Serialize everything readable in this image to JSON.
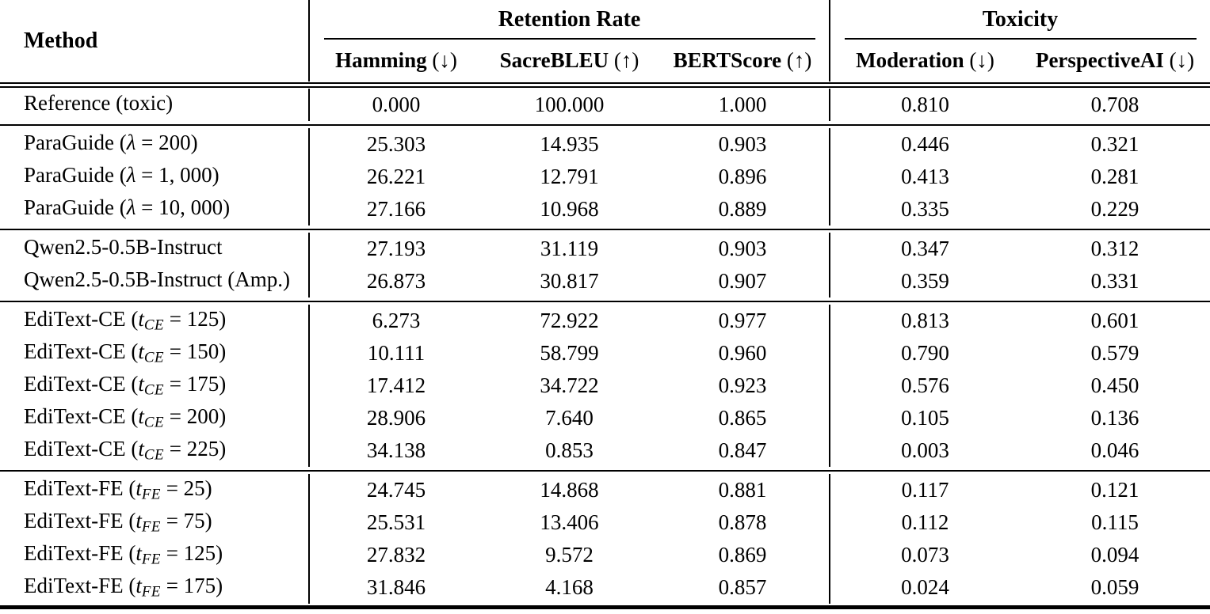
{
  "table": {
    "method_header": "Method",
    "group_headers": [
      {
        "label": "Retention Rate"
      },
      {
        "label": "Toxicity"
      }
    ],
    "metric_headers": [
      {
        "name": "Hamming",
        "suffix": "(↓)"
      },
      {
        "name": "SacreBLEU",
        "suffix": "(↑)"
      },
      {
        "name": "BERTScore",
        "suffix": "(↑)"
      },
      {
        "name": "Moderation",
        "suffix": "(↓)"
      },
      {
        "name": "PerspectiveAI",
        "suffix": "(↓)"
      }
    ],
    "row_groups": [
      {
        "name": "reference",
        "rows": [
          {
            "method": {
              "pre": "Reference (toxic)",
              "var": "",
              "sub": "",
              "post": ""
            },
            "values": [
              "0.000",
              "100.000",
              "1.000",
              "0.810",
              "0.708"
            ]
          }
        ]
      },
      {
        "name": "paraguide",
        "rows": [
          {
            "method": {
              "pre": "ParaGuide (",
              "var": "λ",
              "sub": "",
              "post": " = 200)"
            },
            "values": [
              "25.303",
              "14.935",
              "0.903",
              "0.446",
              "0.321"
            ]
          },
          {
            "method": {
              "pre": "ParaGuide (",
              "var": "λ",
              "sub": "",
              "post": " = 1, 000)"
            },
            "values": [
              "26.221",
              "12.791",
              "0.896",
              "0.413",
              "0.281"
            ]
          },
          {
            "method": {
              "pre": "ParaGuide (",
              "var": "λ",
              "sub": "",
              "post": " = 10, 000)"
            },
            "values": [
              "27.166",
              "10.968",
              "0.889",
              "0.335",
              "0.229"
            ]
          }
        ]
      },
      {
        "name": "qwen",
        "rows": [
          {
            "method": {
              "pre": "Qwen2.5-0.5B-Instruct",
              "var": "",
              "sub": "",
              "post": ""
            },
            "values": [
              "27.193",
              "31.119",
              "0.903",
              "0.347",
              "0.312"
            ]
          },
          {
            "method": {
              "pre": "Qwen2.5-0.5B-Instruct (Amp.)",
              "var": "",
              "sub": "",
              "post": ""
            },
            "values": [
              "26.873",
              "30.817",
              "0.907",
              "0.359",
              "0.331"
            ]
          }
        ]
      },
      {
        "name": "editext-ce",
        "rows": [
          {
            "method": {
              "pre": "EdiText-CE (",
              "var": "t",
              "sub": "CE",
              "post": " = 125)"
            },
            "values": [
              "6.273",
              "72.922",
              "0.977",
              "0.813",
              "0.601"
            ]
          },
          {
            "method": {
              "pre": "EdiText-CE (",
              "var": "t",
              "sub": "CE",
              "post": " = 150)"
            },
            "values": [
              "10.111",
              "58.799",
              "0.960",
              "0.790",
              "0.579"
            ]
          },
          {
            "method": {
              "pre": "EdiText-CE (",
              "var": "t",
              "sub": "CE",
              "post": " = 175)"
            },
            "values": [
              "17.412",
              "34.722",
              "0.923",
              "0.576",
              "0.450"
            ]
          },
          {
            "method": {
              "pre": "EdiText-CE (",
              "var": "t",
              "sub": "CE",
              "post": " = 200)"
            },
            "values": [
              "28.906",
              "7.640",
              "0.865",
              "0.105",
              "0.136"
            ]
          },
          {
            "method": {
              "pre": "EdiText-CE (",
              "var": "t",
              "sub": "CE",
              "post": " = 225)"
            },
            "values": [
              "34.138",
              "0.853",
              "0.847",
              "0.003",
              "0.046"
            ]
          }
        ]
      },
      {
        "name": "editext-fe",
        "rows": [
          {
            "method": {
              "pre": "EdiText-FE (",
              "var": "t",
              "sub": "FE",
              "post": " = 25)"
            },
            "values": [
              "24.745",
              "14.868",
              "0.881",
              "0.117",
              "0.121"
            ]
          },
          {
            "method": {
              "pre": "EdiText-FE (",
              "var": "t",
              "sub": "FE",
              "post": " = 75)"
            },
            "values": [
              "25.531",
              "13.406",
              "0.878",
              "0.112",
              "0.115"
            ]
          },
          {
            "method": {
              "pre": "EdiText-FE (",
              "var": "t",
              "sub": "FE",
              "post": " = 125)"
            },
            "values": [
              "27.832",
              "9.572",
              "0.869",
              "0.073",
              "0.094"
            ]
          },
          {
            "method": {
              "pre": "EdiText-FE (",
              "var": "t",
              "sub": "FE",
              "post": " = 175)"
            },
            "values": [
              "31.846",
              "4.168",
              "0.857",
              "0.024",
              "0.059"
            ]
          }
        ]
      }
    ]
  }
}
